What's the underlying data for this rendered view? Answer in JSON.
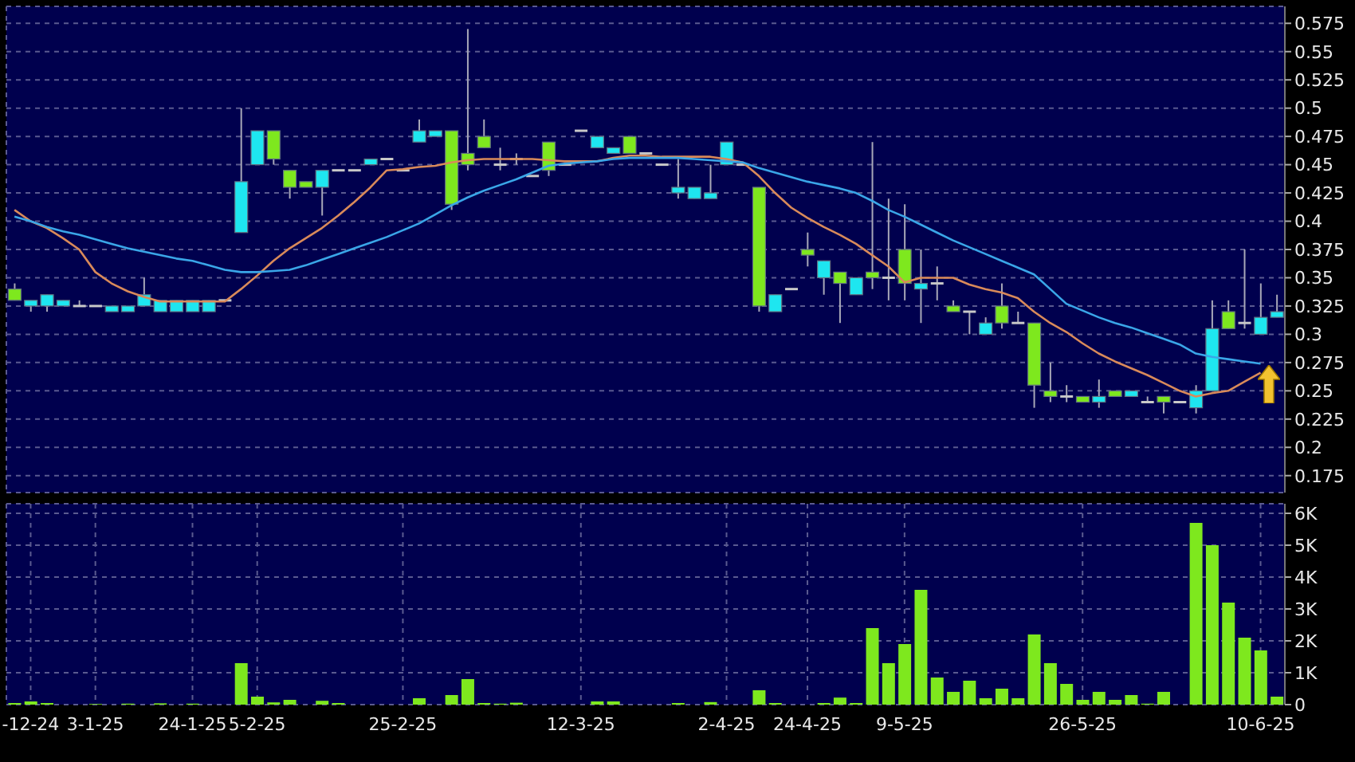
{
  "chart_data": [
    {
      "type": "candlestick",
      "categories": [
        null,
        null,
        null,
        null,
        null,
        null,
        null,
        null,
        null,
        null,
        null,
        null,
        null,
        null,
        null,
        null,
        null,
        null,
        null,
        null,
        null,
        null,
        null,
        null,
        null,
        null,
        null,
        null,
        null,
        null,
        null,
        null,
        null,
        null,
        null,
        null,
        null,
        null,
        null,
        null,
        null,
        null,
        null,
        null,
        null,
        null,
        null,
        null,
        null,
        null,
        null,
        null,
        null,
        null,
        null,
        null,
        null,
        null,
        null,
        null,
        null,
        null,
        null,
        null,
        null,
        null,
        null,
        null,
        null,
        null,
        null,
        null,
        null,
        null,
        null,
        null,
        null,
        null,
        null
      ],
      "ohlc": [
        [
          0.34,
          0.345,
          0.33,
          0.33
        ],
        [
          0.325,
          0.33,
          0.32,
          0.33
        ],
        [
          0.325,
          0.335,
          0.32,
          0.335
        ],
        [
          0.325,
          0.33,
          0.325,
          0.33
        ],
        [
          0.325,
          0.33,
          0.325,
          0.325
        ],
        [
          0.325,
          0.325,
          0.325,
          0.325
        ],
        [
          0.32,
          0.325,
          0.32,
          0.325
        ],
        [
          0.32,
          0.325,
          0.32,
          0.325
        ],
        [
          0.325,
          0.35,
          0.325,
          0.335
        ],
        [
          0.32,
          0.33,
          0.32,
          0.33
        ],
        [
          0.32,
          0.33,
          0.32,
          0.33
        ],
        [
          0.32,
          0.33,
          0.32,
          0.33
        ],
        [
          0.32,
          0.33,
          0.32,
          0.33
        ],
        [
          0.33,
          0.33,
          0.33,
          0.33
        ],
        [
          0.39,
          0.5,
          0.39,
          0.435
        ],
        [
          0.45,
          0.48,
          0.45,
          0.48
        ],
        [
          0.48,
          0.48,
          0.45,
          0.455
        ],
        [
          0.445,
          0.445,
          0.42,
          0.43
        ],
        [
          0.435,
          0.435,
          0.43,
          0.43
        ],
        [
          0.43,
          0.445,
          0.405,
          0.445
        ],
        [
          0.445,
          0.445,
          0.445,
          0.445
        ],
        [
          0.445,
          0.445,
          0.445,
          0.445
        ],
        [
          0.45,
          0.455,
          0.45,
          0.455
        ],
        [
          0.455,
          0.455,
          0.455,
          0.455
        ],
        [
          0.445,
          0.445,
          0.445,
          0.445
        ],
        [
          0.47,
          0.49,
          0.47,
          0.48
        ],
        [
          0.475,
          0.48,
          0.475,
          0.48
        ],
        [
          0.48,
          0.48,
          0.41,
          0.415
        ],
        [
          0.46,
          0.57,
          0.445,
          0.45
        ],
        [
          0.475,
          0.49,
          0.465,
          0.465
        ],
        [
          0.45,
          0.465,
          0.445,
          0.45
        ],
        [
          0.455,
          0.46,
          0.45,
          0.455
        ],
        [
          0.44,
          0.44,
          0.44,
          0.44
        ],
        [
          0.47,
          0.47,
          0.44,
          0.445
        ],
        [
          0.45,
          0.45,
          0.45,
          0.45
        ],
        [
          0.48,
          0.48,
          0.48,
          0.48
        ],
        [
          0.465,
          0.475,
          0.465,
          0.475
        ],
        [
          0.46,
          0.465,
          0.46,
          0.465
        ],
        [
          0.475,
          0.475,
          0.46,
          0.46
        ],
        [
          0.46,
          0.46,
          0.46,
          0.46
        ],
        [
          0.45,
          0.45,
          0.45,
          0.45
        ],
        [
          0.425,
          0.455,
          0.42,
          0.43
        ],
        [
          0.42,
          0.43,
          0.42,
          0.43
        ],
        [
          0.42,
          0.45,
          0.42,
          0.425
        ],
        [
          0.45,
          0.47,
          0.45,
          0.47
        ],
        [
          0.45,
          0.45,
          0.45,
          0.45
        ],
        [
          0.43,
          0.43,
          0.32,
          0.325
        ],
        [
          0.32,
          0.335,
          0.32,
          0.335
        ],
        [
          0.34,
          0.34,
          0.34,
          0.34
        ],
        [
          0.375,
          0.39,
          0.36,
          0.37
        ],
        [
          0.35,
          0.365,
          0.335,
          0.365
        ],
        [
          0.355,
          0.355,
          0.31,
          0.345
        ],
        [
          0.335,
          0.35,
          0.335,
          0.35
        ],
        [
          0.355,
          0.47,
          0.34,
          0.35
        ],
        [
          0.35,
          0.42,
          0.33,
          0.35
        ],
        [
          0.375,
          0.415,
          0.33,
          0.345
        ],
        [
          0.34,
          0.375,
          0.31,
          0.345
        ],
        [
          0.345,
          0.36,
          0.33,
          0.345
        ],
        [
          0.325,
          0.33,
          0.32,
          0.32
        ],
        [
          0.32,
          0.32,
          0.3,
          0.32
        ],
        [
          0.3,
          0.315,
          0.3,
          0.31
        ],
        [
          0.325,
          0.345,
          0.305,
          0.31
        ],
        [
          0.31,
          0.32,
          0.31,
          0.31
        ],
        [
          0.31,
          0.31,
          0.235,
          0.255
        ],
        [
          0.25,
          0.275,
          0.24,
          0.245
        ],
        [
          0.245,
          0.255,
          0.24,
          0.245
        ],
        [
          0.245,
          0.245,
          0.24,
          0.24
        ],
        [
          0.24,
          0.26,
          0.235,
          0.245
        ],
        [
          0.25,
          0.25,
          0.245,
          0.245
        ],
        [
          0.245,
          0.25,
          0.245,
          0.25
        ],
        [
          0.24,
          0.245,
          0.24,
          0.24
        ],
        [
          0.245,
          0.245,
          0.23,
          0.24
        ],
        [
          0.24,
          0.24,
          0.24,
          0.24
        ],
        [
          0.235,
          0.255,
          0.23,
          0.25
        ],
        [
          0.25,
          0.33,
          0.25,
          0.305
        ],
        [
          0.32,
          0.33,
          0.305,
          0.305
        ],
        [
          0.31,
          0.375,
          0.305,
          0.31
        ],
        [
          0.3,
          0.345,
          0.3,
          0.315
        ],
        [
          0.315,
          0.335,
          0.315,
          0.32
        ]
      ],
      "colors": [
        "#7ee81e",
        "#1ee6f0",
        "#1ee6f0",
        "#1ee6f0",
        "#c8c8c8",
        "#c8c8c8",
        "#1ee6f0",
        "#1ee6f0",
        "#1ee6f0",
        "#1ee6f0",
        "#1ee6f0",
        "#1ee6f0",
        "#1ee6f0",
        "#c8c8c8",
        "#1ee6f0",
        "#1ee6f0",
        "#7ee81e",
        "#7ee81e",
        "#7ee81e",
        "#1ee6f0",
        "#c8c8c8",
        "#c8c8c8",
        "#1ee6f0",
        "#c8c8c8",
        "#c8c8c8",
        "#1ee6f0",
        "#1ee6f0",
        "#7ee81e",
        "#7ee81e",
        "#7ee81e",
        "#c8c8c8",
        "#c8c8c8",
        "#c8c8c8",
        "#7ee81e",
        "#c8c8c8",
        "#c8c8c8",
        "#1ee6f0",
        "#1ee6f0",
        "#7ee81e",
        "#c8c8c8",
        "#c8c8c8",
        "#1ee6f0",
        "#1ee6f0",
        "#1ee6f0",
        "#1ee6f0",
        "#c8c8c8",
        "#7ee81e",
        "#1ee6f0",
        "#c8c8c8",
        "#7ee81e",
        "#1ee6f0",
        "#7ee81e",
        "#1ee6f0",
        "#7ee81e",
        "#c8c8c8",
        "#7ee81e",
        "#1ee6f0",
        "#c8c8c8",
        "#7ee81e",
        "#c8c8c8",
        "#1ee6f0",
        "#7ee81e",
        "#c8c8c8",
        "#7ee81e",
        "#7ee81e",
        "#c8c8c8",
        "#7ee81e",
        "#1ee6f0",
        "#7ee81e",
        "#1ee6f0",
        "#c8c8c8",
        "#7ee81e",
        "#c8c8c8",
        "#1ee6f0",
        "#1ee6f0",
        "#7ee81e",
        "#c8c8c8",
        "#1ee6f0",
        "#1ee6f0"
      ],
      "series": [
        {
          "type": "line",
          "color": "#d98a5a",
          "values": [
            0.41,
            0.4,
            0.394,
            0.385,
            0.375,
            0.355,
            0.345,
            0.338,
            0.333,
            0.329,
            0.329,
            0.329,
            0.329,
            0.329,
            0.34,
            0.352,
            0.365,
            0.376,
            0.385,
            0.394,
            0.405,
            0.417,
            0.43,
            0.445,
            0.446,
            0.448,
            0.449,
            0.452,
            0.454,
            0.455,
            0.455,
            0.455,
            0.455,
            0.454,
            0.453,
            0.453,
            0.453,
            0.456,
            0.458,
            0.458,
            0.457,
            0.457,
            0.457,
            0.457,
            0.455,
            0.452,
            0.44,
            0.425,
            0.412,
            0.403,
            0.395,
            0.388,
            0.38,
            0.37,
            0.36,
            0.346,
            0.35,
            0.35,
            0.35,
            0.344,
            0.34,
            0.337,
            0.332,
            0.32,
            0.31,
            0.302,
            0.292,
            0.283,
            0.276,
            0.27,
            0.264,
            0.257,
            0.25,
            0.245,
            0.248,
            0.25,
            0.258,
            0.266,
            null
          ]
        },
        {
          "type": "line",
          "color": "#3aa6e8",
          "values": [
            0.404,
            0.4,
            0.395,
            0.391,
            0.388,
            0.384,
            0.38,
            0.376,
            0.373,
            0.37,
            0.367,
            0.365,
            0.361,
            0.357,
            0.355,
            0.355,
            0.356,
            0.357,
            0.361,
            0.366,
            0.371,
            0.376,
            0.381,
            0.386,
            0.392,
            0.398,
            0.406,
            0.414,
            0.421,
            0.427,
            0.432,
            0.437,
            0.443,
            0.449,
            0.451,
            0.452,
            0.453,
            0.455,
            0.456,
            0.456,
            0.456,
            0.456,
            0.455,
            0.454,
            0.453,
            0.452,
            0.447,
            0.443,
            0.439,
            0.435,
            0.432,
            0.429,
            0.425,
            0.418,
            0.41,
            0.404,
            0.397,
            0.39,
            0.383,
            0.377,
            0.371,
            0.365,
            0.359,
            0.353,
            0.34,
            0.327,
            0.321,
            0.315,
            0.31,
            0.306,
            0.301,
            0.296,
            0.291,
            0.283,
            0.28,
            0.278,
            0.276,
            0.274,
            null
          ]
        }
      ],
      "ylim": [
        0.16,
        0.59
      ],
      "yticks": [
        0.175,
        0.2,
        0.225,
        0.25,
        0.275,
        0.3,
        0.325,
        0.35,
        0.375,
        0.4,
        0.425,
        0.45,
        0.475,
        0.5,
        0.525,
        0.55,
        0.575
      ],
      "grid": true,
      "tick_labels": "y"
    },
    {
      "type": "bar",
      "categories": [
        null,
        "-12-24",
        null,
        null,
        null,
        "3-1-25",
        null,
        null,
        null,
        null,
        null,
        "24-1-25",
        null,
        null,
        null,
        "5-2-25",
        null,
        null,
        null,
        null,
        null,
        null,
        null,
        null,
        "25-2-25",
        null,
        null,
        null,
        null,
        null,
        null,
        null,
        null,
        null,
        null,
        "12-3-25",
        null,
        null,
        null,
        null,
        null,
        null,
        null,
        null,
        "2-4-25",
        null,
        null,
        null,
        null,
        "24-4-25",
        null,
        null,
        null,
        null,
        null,
        "9-5-25",
        null,
        null,
        null,
        null,
        null,
        null,
        null,
        null,
        null,
        null,
        "26-5-25",
        null,
        null,
        null,
        null,
        null,
        null,
        null,
        null,
        null,
        null,
        "10-6-25",
        null
      ],
      "values": [
        0.05,
        0.1,
        0.05,
        0,
        0,
        0.02,
        0,
        0.03,
        0,
        0.04,
        0,
        0.03,
        0,
        0,
        1.3,
        0.25,
        0.07,
        0.15,
        0,
        0.12,
        0.05,
        0,
        0,
        0,
        0,
        0.2,
        0,
        0.3,
        0.8,
        0.05,
        0.03,
        0.06,
        0,
        0,
        0,
        0,
        0.1,
        0.1,
        0,
        0,
        0,
        0.05,
        0,
        0.08,
        0,
        0,
        0.45,
        0.05,
        0,
        0,
        0.05,
        0.22,
        0.05,
        2.4,
        1.3,
        1.9,
        3.6,
        0.85,
        0.4,
        0.75,
        0.2,
        0.5,
        0.2,
        2.2,
        1.3,
        0.65,
        0.15,
        0.4,
        0.15,
        0.3,
        0.03,
        0.4,
        0,
        5.7,
        5.0,
        3.2,
        2.1,
        1.7,
        0.25
      ],
      "color": "#7ee81e",
      "ylim": [
        0,
        6.3
      ],
      "yticks": [
        0,
        {
          "value": 1,
          "label": "1K"
        },
        {
          "value": 2,
          "label": "2K"
        },
        {
          "value": 3,
          "label": "3K"
        },
        {
          "value": 4,
          "label": "4K"
        },
        {
          "value": 5,
          "label": "5K"
        },
        {
          "value": 6,
          "label": "6K"
        }
      ],
      "grid": true
    }
  ]
}
